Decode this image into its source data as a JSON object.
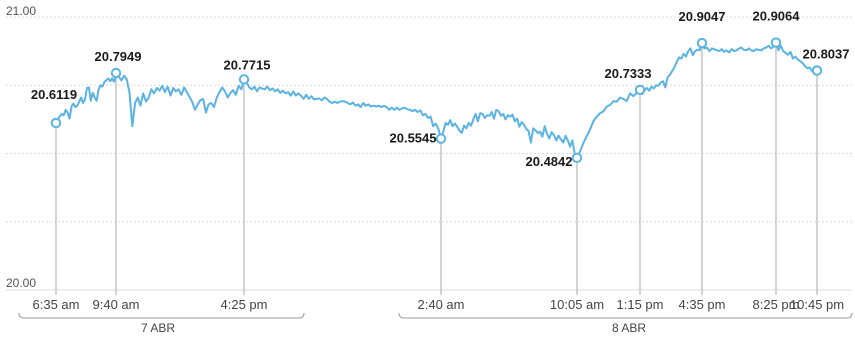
{
  "chart_data": {
    "type": "line",
    "ylim": [
      20.0,
      21.0
    ],
    "y_ticks": [
      "21.00",
      "20.00"
    ],
    "grid": true,
    "series_color": "#5ab3e2",
    "marker_line_color": "#b7b7b7",
    "x_ticks": [
      "6:35 am",
      "9:40 am",
      "4:25 pm",
      "2:40 am",
      "10:05 am",
      "1:15 pm",
      "4:35 pm",
      "8:25 pm",
      "10:45 pm"
    ],
    "day_groups": [
      {
        "label": "7 ABR",
        "first_tick": 0,
        "last_tick": 2
      },
      {
        "label": "8 ABR",
        "first_tick": 3,
        "last_tick": 8
      }
    ],
    "annotations": [
      {
        "time": "6:35 am",
        "value": 20.6119,
        "label": "20.6119"
      },
      {
        "time": "9:40 am",
        "value": 20.7949,
        "label": "20.7949"
      },
      {
        "time": "4:25 pm",
        "value": 20.7715,
        "label": "20.7715"
      },
      {
        "time": "2:40 am",
        "value": 20.5545,
        "label": "20.5545"
      },
      {
        "time": "10:05 am",
        "value": 20.4842,
        "label": "20.4842"
      },
      {
        "time": "1:15 pm",
        "value": 20.7333,
        "label": "20.7333"
      },
      {
        "time": "4:35 pm",
        "value": 20.9047,
        "label": "20.9047"
      },
      {
        "time": "8:25 pm",
        "value": 20.9064,
        "label": "20.9064"
      },
      {
        "time": "10:45 pm",
        "value": 20.8037,
        "label": "20.8037"
      }
    ],
    "values": [
      20.6119,
      20.625,
      20.637,
      20.645,
      20.64,
      20.66,
      20.65,
      20.628,
      20.672,
      20.683,
      20.67,
      20.675,
      20.69,
      20.705,
      20.685,
      20.7,
      20.74,
      20.742,
      20.693,
      20.722,
      20.705,
      20.693,
      20.735,
      20.75,
      20.745,
      20.762,
      20.768,
      20.775,
      20.765,
      20.775,
      20.763,
      20.7949,
      20.782,
      20.768,
      20.785,
      20.77,
      20.72,
      20.6,
      20.685,
      20.705,
      20.675,
      20.72,
      20.69,
      20.705,
      20.735,
      20.72,
      20.74,
      20.73,
      20.748,
      20.725,
      20.745,
      20.712,
      20.74,
      20.728,
      20.735,
      20.715,
      20.742,
      20.725,
      20.708,
      20.688,
      20.66,
      20.68,
      20.695,
      20.7,
      20.65,
      20.68,
      20.685,
      20.67,
      20.705,
      20.725,
      20.742,
      20.728,
      20.705,
      20.722,
      20.732,
      20.715,
      20.748,
      20.735,
      20.7715,
      20.762,
      20.742,
      20.735,
      20.745,
      20.728,
      20.742,
      20.738,
      20.735,
      20.745,
      20.732,
      20.738,
      20.728,
      20.735,
      20.722,
      20.73,
      20.72,
      20.725,
      20.712,
      20.728,
      20.712,
      20.72,
      20.712,
      20.7,
      20.715,
      20.7,
      20.71,
      20.698,
      20.7,
      20.702,
      20.695,
      20.705,
      20.7,
      20.69,
      20.685,
      20.69,
      20.685,
      20.69,
      20.692,
      20.69,
      20.685,
      20.68,
      20.687,
      20.675,
      20.68,
      20.67,
      20.685,
      20.675,
      20.68,
      20.672,
      20.675,
      20.672,
      20.675,
      20.67,
      20.675,
      20.67,
      20.66,
      20.668,
      20.66,
      20.668,
      20.66,
      20.665,
      20.668,
      20.662,
      20.66,
      20.655,
      20.66,
      20.652,
      20.658,
      20.64,
      20.645,
      20.63,
      20.635,
      20.6,
      20.61,
      20.59,
      20.5545,
      20.58,
      20.612,
      20.605,
      20.622,
      20.6,
      20.61,
      20.598,
      20.585,
      20.575,
      20.602,
      20.592,
      20.612,
      20.602,
      20.625,
      20.645,
      20.618,
      20.648,
      20.645,
      20.63,
      20.64,
      20.638,
      20.652,
      20.628,
      20.66,
      20.655,
      20.638,
      20.645,
      20.625,
      20.64,
      20.635,
      20.642,
      20.618,
      20.628,
      20.598,
      20.615,
      20.605,
      20.59,
      20.582,
      20.54,
      20.592,
      20.585,
      20.575,
      20.58,
      20.562,
      20.6,
      20.572,
      20.555,
      20.578,
      20.568,
      20.548,
      20.565,
      20.552,
      20.54,
      20.565,
      20.548,
      20.525,
      20.548,
      20.498,
      20.4842,
      20.51,
      20.54,
      20.565,
      20.59,
      20.62,
      20.635,
      20.648,
      20.655,
      20.672,
      20.678,
      20.692,
      20.69,
      20.705,
      20.7,
      20.692,
      20.72,
      20.71,
      20.722,
      20.7333,
      20.718,
      20.732,
      20.74,
      20.73,
      20.745,
      20.738,
      20.75,
      20.748,
      20.76,
      20.765,
      20.742,
      20.78,
      20.788,
      20.802,
      20.815,
      20.835,
      20.852,
      20.848,
      20.865,
      20.855,
      20.875,
      20.885,
      20.86,
      20.875,
      20.88,
      20.878,
      20.9047,
      20.885,
      20.888,
      20.875,
      20.885,
      20.882,
      20.878,
      20.875,
      20.882,
      20.872,
      20.878,
      20.87,
      20.882,
      20.875,
      20.878,
      20.885,
      20.888,
      20.88,
      20.878,
      20.885,
      20.878,
      20.875,
      20.882,
      20.88,
      20.878,
      20.885,
      20.888,
      20.895,
      20.885,
      20.892,
      20.9064,
      20.878,
      20.895,
      20.875,
      20.868,
      20.862,
      20.872,
      20.848,
      20.855,
      20.845,
      20.838,
      20.832,
      20.82,
      20.812,
      20.815,
      20.802,
      20.818,
      20.8037
    ]
  }
}
